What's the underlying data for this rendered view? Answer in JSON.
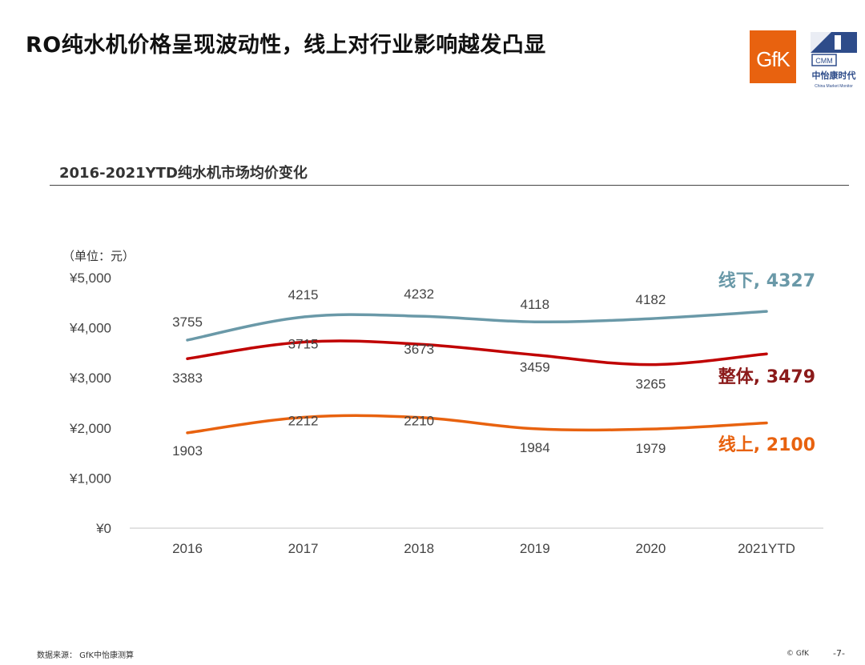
{
  "page": {
    "title": "RO纯水机价格呈现波动性，线上对行业影响越发凸显",
    "logo_gfk_text": "GfK",
    "logo_cmm_text": "CMM",
    "logo_cmm_cn": "中怡康时代",
    "logo_cmm_en": "China Market Monitor",
    "section_title": "2016-2021YTD纯水机市场均价变化",
    "footer_source": "数据来源： GfK中怡康测算",
    "footer_copy": "© GfK",
    "footer_page": "-7-"
  },
  "chart_data": {
    "type": "line",
    "title": "",
    "unit_label": "（单位：元）",
    "xlabel": "",
    "ylabel": "",
    "categories": [
      "2016",
      "2017",
      "2018",
      "2019",
      "2020",
      "2021YTD"
    ],
    "ylim": [
      0,
      5000
    ],
    "yticks": [
      0,
      1000,
      2000,
      3000,
      4000,
      5000
    ],
    "ytick_labels": [
      "¥0",
      "¥1,000",
      "¥2,000",
      "¥3,000",
      "¥4,000",
      "¥5,000"
    ],
    "grid": false,
    "legend": "end-labels",
    "series": [
      {
        "name": "线下",
        "end_label": "线下, 4327",
        "color": "#6a99a8",
        "values": [
          3755,
          4215,
          4232,
          4118,
          4182,
          4327
        ]
      },
      {
        "name": "整体",
        "end_label": "整体, 3479",
        "color": "#c00000",
        "values": [
          3383,
          3715,
          3673,
          3459,
          3265,
          3479
        ]
      },
      {
        "name": "线上",
        "end_label": "线上, 2100",
        "color": "#e8620f",
        "values": [
          1903,
          2212,
          2210,
          1984,
          1979,
          2100
        ]
      }
    ]
  },
  "colors": {
    "offline": "#6a99a8",
    "overall": "#c00000",
    "online": "#e8620f",
    "gfk": "#e8620f",
    "cmm": "#2e4c8a"
  }
}
